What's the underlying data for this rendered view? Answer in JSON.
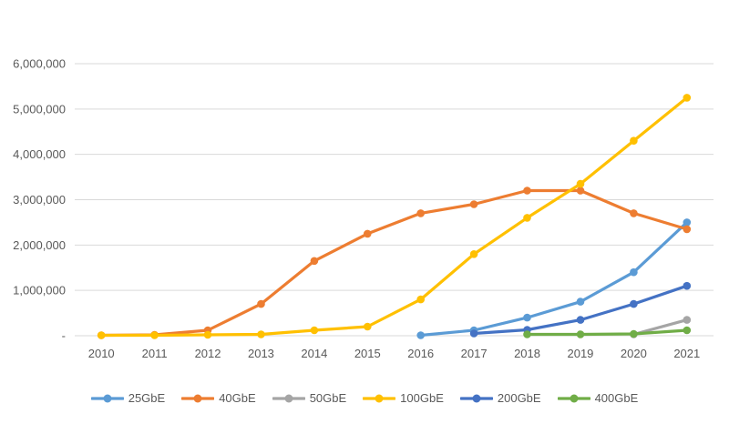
{
  "chart": {
    "background_color": "#FFFFFF",
    "gridline_color": "#D9D9D9",
    "axis_text_color": "#595959",
    "legend_text_color": "#595959"
  },
  "chart_data": {
    "type": "line",
    "title": "",
    "xlabel": "",
    "ylabel": "",
    "grid": true,
    "legend_position": "bottom",
    "x_categories": [
      "2010",
      "2011",
      "2012",
      "2013",
      "2014",
      "2015",
      "2016",
      "2017",
      "2018",
      "2019",
      "2020",
      "2021"
    ],
    "y_axis": {
      "min": 0,
      "max": 6000000,
      "tick_interval": 1000000,
      "tick_labels": [
        "-",
        "1,000,000",
        "2,000,000",
        "3,000,000",
        "4,000,000",
        "5,000,000",
        "6,000,000"
      ]
    },
    "series": [
      {
        "name": "25GbE",
        "color": "#5B9BD5",
        "values": [
          null,
          null,
          null,
          null,
          null,
          null,
          10000,
          120000,
          400000,
          750000,
          1400000,
          2500000
        ]
      },
      {
        "name": "40GbE",
        "color": "#ED7D31",
        "values": [
          10000,
          20000,
          120000,
          700000,
          1650000,
          2250000,
          2700000,
          2900000,
          3200000,
          3200000,
          2700000,
          2350000
        ]
      },
      {
        "name": "50GbE",
        "color": "#A5A5A5",
        "values": [
          null,
          null,
          null,
          null,
          null,
          null,
          null,
          null,
          null,
          null,
          30000,
          350000
        ]
      },
      {
        "name": "100GbE",
        "color": "#FFC000",
        "values": [
          10000,
          10000,
          20000,
          30000,
          120000,
          200000,
          800000,
          1800000,
          2600000,
          3350000,
          4300000,
          5250000
        ]
      },
      {
        "name": "200GbE",
        "color": "#4472C4",
        "values": [
          null,
          null,
          null,
          null,
          null,
          null,
          null,
          50000,
          130000,
          350000,
          700000,
          1100000
        ]
      },
      {
        "name": "400GbE",
        "color": "#70AD47",
        "values": [
          null,
          null,
          null,
          null,
          null,
          null,
          null,
          null,
          30000,
          30000,
          40000,
          120000
        ]
      }
    ]
  }
}
